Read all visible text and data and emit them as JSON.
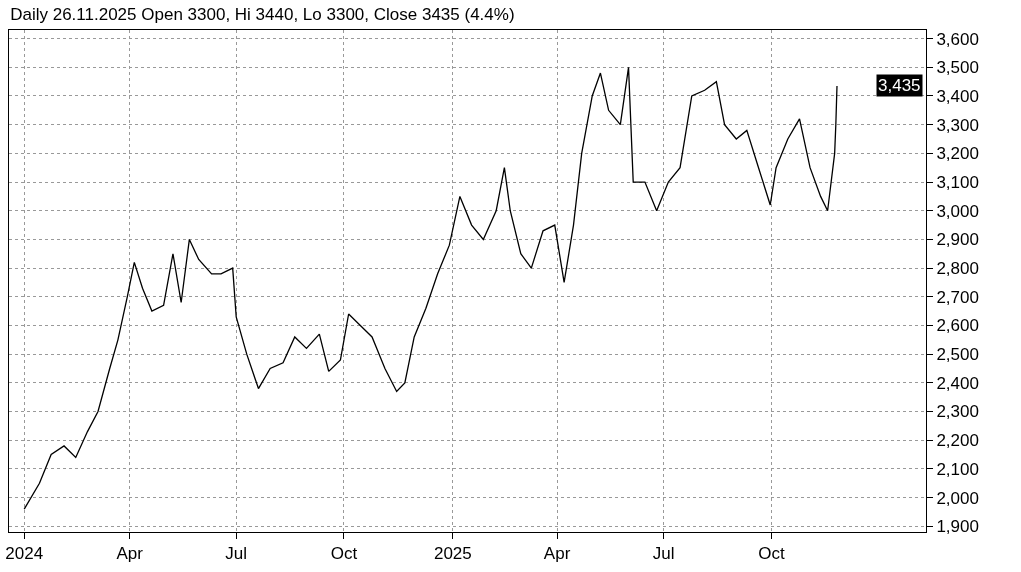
{
  "chart_data": {
    "type": "line",
    "title": "Daily 26.11.2025 Open 3300, Hi 3440, Lo 3300, Close 3435 (4.4%)",
    "x": [
      "2024-01-02",
      "2024-01-15",
      "2024-01-25",
      "2024-02-05",
      "2024-02-15",
      "2024-02-25",
      "2024-03-05",
      "2024-03-15",
      "2024-03-22",
      "2024-03-30",
      "2024-04-05",
      "2024-04-12",
      "2024-04-20",
      "2024-04-30",
      "2024-05-08",
      "2024-05-15",
      "2024-05-22",
      "2024-05-30",
      "2024-06-10",
      "2024-06-18",
      "2024-06-28",
      "2024-07-01",
      "2024-07-10",
      "2024-07-20",
      "2024-07-30",
      "2024-08-10",
      "2024-08-20",
      "2024-08-30",
      "2024-09-10",
      "2024-09-18",
      "2024-09-28",
      "2024-10-05",
      "2024-10-15",
      "2024-10-25",
      "2024-11-05",
      "2024-11-15",
      "2024-11-22",
      "2024-11-30",
      "2024-12-10",
      "2024-12-20",
      "2024-12-30",
      "2025-01-08",
      "2025-01-18",
      "2025-01-28",
      "2025-02-08",
      "2025-02-15",
      "2025-02-20",
      "2025-03-01",
      "2025-03-10",
      "2025-03-20",
      "2025-03-30",
      "2025-04-07",
      "2025-04-15",
      "2025-04-22",
      "2025-05-01",
      "2025-05-08",
      "2025-05-15",
      "2025-05-25",
      "2025-06-01",
      "2025-06-05",
      "2025-06-15",
      "2025-06-25",
      "2025-07-05",
      "2025-07-15",
      "2025-07-25",
      "2025-08-05",
      "2025-08-15",
      "2025-08-22",
      "2025-09-01",
      "2025-09-10",
      "2025-09-20",
      "2025-09-30",
      "2025-10-05",
      "2025-10-15",
      "2025-10-25",
      "2025-11-03",
      "2025-11-12",
      "2025-11-18",
      "2025-11-24",
      "2025-11-25",
      "2025-11-26"
    ],
    "series": [
      {
        "color": "#000000",
        "values": [
          1960,
          2050,
          2150,
          2180,
          2140,
          2230,
          2300,
          2450,
          2550,
          2700,
          2820,
          2730,
          2650,
          2670,
          2850,
          2680,
          2900,
          2830,
          2780,
          2780,
          2800,
          2630,
          2500,
          2380,
          2450,
          2470,
          2560,
          2520,
          2570,
          2440,
          2480,
          2640,
          2600,
          2560,
          2450,
          2370,
          2400,
          2560,
          2660,
          2780,
          2880,
          3050,
          2950,
          2900,
          3000,
          3150,
          3000,
          2850,
          2800,
          2930,
          2950,
          2750,
          2950,
          3200,
          3400,
          3480,
          3350,
          3300,
          3500,
          3100,
          3100,
          3000,
          3100,
          3150,
          3400,
          3420,
          3450,
          3300,
          3250,
          3280,
          3150,
          3020,
          3150,
          3250,
          3320,
          3150,
          3050,
          3000,
          3200,
          3300,
          3435
        ]
      }
    ],
    "xlim": [
      "2023-12-20",
      "2026-02-10"
    ],
    "xticks": [
      {
        "value": "2024-01-02",
        "label": "2024"
      },
      {
        "value": "2024-04-01",
        "label": "Apr"
      },
      {
        "value": "2024-07-01",
        "label": "Jul"
      },
      {
        "value": "2024-10-01",
        "label": "Oct"
      },
      {
        "value": "2025-01-02",
        "label": "2025"
      },
      {
        "value": "2025-04-01",
        "label": "Apr"
      },
      {
        "value": "2025-07-01",
        "label": "Jul"
      },
      {
        "value": "2025-10-01",
        "label": "Oct"
      }
    ],
    "ylim": [
      1880,
      3630
    ],
    "yticks": [
      {
        "value": 1900,
        "label": "1,900"
      },
      {
        "value": 2000,
        "label": "2,000"
      },
      {
        "value": 2100,
        "label": "2,100"
      },
      {
        "value": 2200,
        "label": "2,200"
      },
      {
        "value": 2300,
        "label": "2,300"
      },
      {
        "value": 2400,
        "label": "2,400"
      },
      {
        "value": 2500,
        "label": "2,500"
      },
      {
        "value": 2600,
        "label": "2,600"
      },
      {
        "value": 2700,
        "label": "2,700"
      },
      {
        "value": 2800,
        "label": "2,800"
      },
      {
        "value": 2900,
        "label": "2,900"
      },
      {
        "value": 3000,
        "label": "3,000"
      },
      {
        "value": 3100,
        "label": "3,100"
      },
      {
        "value": 3200,
        "label": "3,200"
      },
      {
        "value": 3300,
        "label": "3,300"
      },
      {
        "value": 3400,
        "label": "3,400"
      },
      {
        "value": 3500,
        "label": "3,500"
      },
      {
        "value": 3600,
        "label": "3,600"
      }
    ],
    "annotations": [
      "3,435"
    ],
    "grid": true,
    "legend": false
  }
}
